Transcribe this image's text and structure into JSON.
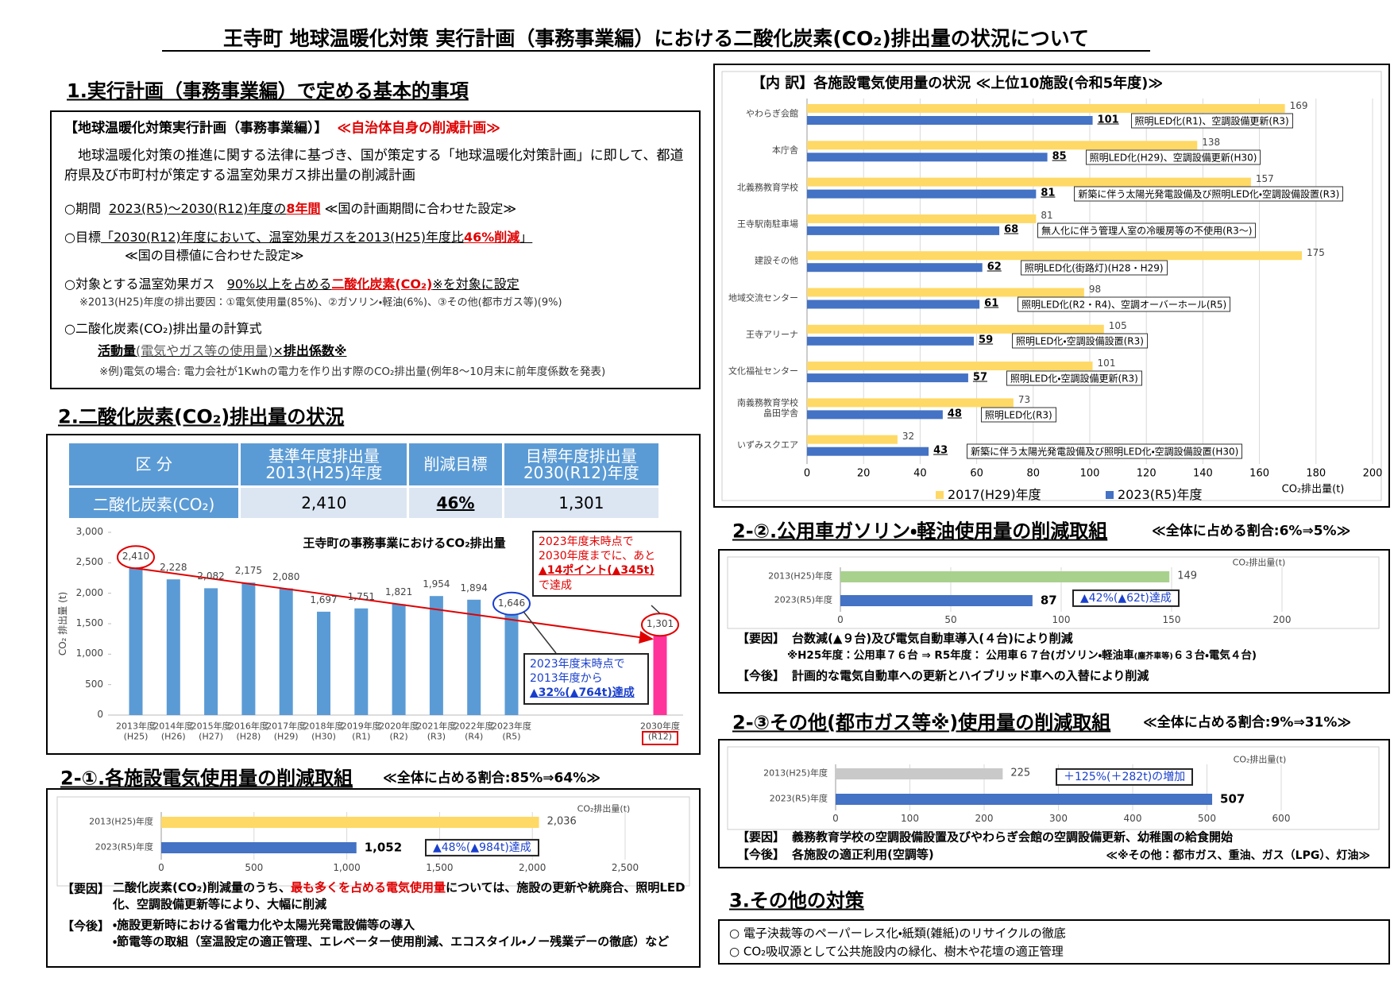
{
  "title": "王寺町 地球温暖化対策 実行計画（事務事業編）における二酸化炭素(CO₂)排出量の状況について",
  "section1": {
    "heading": "1.実行計画（事務事業編）で定める基本的事項",
    "box_title": "【地球温暖化対策実行計画（事務事業編）】",
    "box_tag": "≪自治体自身の削減計画≫",
    "intro": "地球温暖化対策の推進に関する法律に基づき、国が策定する「地球温暖化対策計画」に即して、都道府県及び市町村が策定する温室効果ガス排出量の削減計画",
    "period": [
      "○期間",
      "2023(R5)～2030(R12)年度の",
      "8年間",
      "≪国の計画期間に合わせた設定≫"
    ],
    "goal": [
      "○目標",
      "「2030(R12)年度において、温室効果ガスを2013(H25)年度比",
      "46%削減",
      "」"
    ],
    "goal_note": "≪国の目標値に合わせた設定≫",
    "target": [
      "○対象とする温室効果ガス",
      "90%以上を占める",
      "二酸化炭素(CO₂)",
      "※を対象に設定"
    ],
    "target_note": "※2013(H25)年度の排出要因：①電気使用量(85%)、②ガソリン・軽油(6%)、③その他(都市ガス等)(9%)",
    "formula_title": "○二酸化炭素(CO₂)排出量の計算式",
    "formula": [
      "活動量",
      "(電気やガス等の使用量)",
      "×",
      "排出係数※"
    ],
    "formula_note": "※例)電気の場合: 電力会社が1Kwhの電力を作り出す際のCO₂排出量(例年8～10月末に前年度係数を発表)"
  },
  "section2": {
    "heading": "2.二酸化炭素(CO₂)排出量の状況",
    "table": {
      "header": [
        "区 分",
        "基準年度排出量\n2013(H25)年度",
        "削減目標",
        "目標年度排出量\n2030(R12)年度"
      ],
      "row": [
        "二酸化炭素(CO₂)",
        "2,410",
        "46%",
        "1,301"
      ]
    }
  },
  "section2_1": {
    "heading": "2-①.各施設電気使用量の削減取組",
    "share": "≪全体に占める割合:85%⇒64%≫",
    "cause_label": "【要因】",
    "cause": [
      "二酸化炭素(CO₂)削減量のうち、",
      "最も多くを占める電気使用量",
      "については、施設の更新や統廃合、照明LED化、空調設備更新等により、大幅に削減"
    ],
    "future_label": "【今後】",
    "future": [
      "・施設更新時における省電力化や太陽光発電設備等の導入",
      "・節電等の取組（室温設定の適正管理、エレベーター使用削減、エコスタイル・ノー残業デーの徹底）など"
    ]
  },
  "section2_2": {
    "heading": "2-②.公用車ガソリン・軽油使用量の削減取組",
    "share": "≪全体に占める割合:6%⇒5%≫",
    "cause_label": "【要因】",
    "cause": "台数減(▲９台)及び電気自動車導入(４台)により削減",
    "cause_note": [
      "※H25年度：公用車７６台 ⇒ R5年度： 公用車６７台(ガソリン・軽油車",
      "(塵芥車等)",
      "６３台・電気４台)"
    ],
    "future_label": "【今後】",
    "future": "計画的な電気自動車への更新とハイブリッド車への入替により削減"
  },
  "section2_3": {
    "heading": "2-③その他(都市ガス等※)使用量の削減取組",
    "share": "≪全体に占める割合:9%⇒31%≫",
    "cause_label": "【要因】",
    "cause": "義務教育学校の空調設備設置及びやわらぎ会館の空調設備更新、幼稚園の給食開始",
    "future_label": "【今後】",
    "future": "各施設の適正利用(空調等)",
    "note": "≪※その他：都市ガス、重油、ガス（LPG）、灯油≫"
  },
  "section3": {
    "heading": "3.その他の対策",
    "items": [
      "○ 電子決裁等のペーパーレス化・紙類(雑紙)のリサイクルの徹底",
      "○ CO₂吸収源として公共施設内の緑化、樹木や花壇の適正管理"
    ]
  },
  "chart_data": [
    {
      "type": "bar",
      "title": "王寺町の事務事業におけるCO₂排出量",
      "y_label": "CO₂ 排出量 (t)",
      "categories": [
        "2013年度\n(H25)",
        "2014年度\n(H26)",
        "2015年度\n(H27)",
        "2016年度\n(H28)",
        "2017年度\n(H29)",
        "2018年度\n(H30)",
        "2019年度\n(R1)",
        "2020年度\n(R2)",
        "2021年度\n(R3)",
        "2022年度\n(R4)",
        "2023年度\n(R5)",
        "2030年度\n(R12)"
      ],
      "values": [
        2410,
        2228,
        2082,
        2175,
        2080,
        1697,
        1751,
        1821,
        1954,
        1894,
        1646,
        1301
      ],
      "value_labels": [
        "2,410",
        "2,228",
        "2,082",
        "2,175",
        "2,080",
        "1,697",
        "1,751",
        "1,821",
        "1,954",
        "1,894",
        "1,646",
        "1,301"
      ],
      "colors": [
        "#5b9bd5",
        "#5b9bd5",
        "#5b9bd5",
        "#5b9bd5",
        "#5b9bd5",
        "#5b9bd5",
        "#5b9bd5",
        "#5b9bd5",
        "#5b9bd5",
        "#5b9bd5",
        "#5b9bd5",
        "#ff3399"
      ],
      "ylim": [
        0,
        3000
      ],
      "yticks": [
        0,
        500,
        {
          "value": 1000,
          "label": "1,000"
        },
        {
          "value": 1500,
          "label": "1,500"
        },
        {
          "value": 2000,
          "label": "2,000"
        },
        {
          "value": 2500,
          "label": "2,500"
        },
        {
          "value": 3000,
          "label": "3,000"
        }
      ],
      "grid": false,
      "annotation_target": [
        "2023年度末時点で",
        "2030年度までに、あと",
        "▲14ポイント(▲345t)",
        "で達成"
      ],
      "annotation_achieved": [
        "2023年度末時点で",
        "2013年度から",
        "▲32%(▲764t)達成"
      ]
    },
    {
      "type": "barh",
      "title": "【内 訳】各施設電気使用量の状況 ≪上位10施設(令和5年度)≫",
      "categories": [
        "やわらぎ会館",
        "本庁舎",
        "北義務教育学校",
        "王寺駅南駐車場",
        "建設その他",
        "地域交流センター",
        "王寺アリーナ",
        "文化福祉センター",
        "南義務教育学校\n畠田学舎",
        "いずみスクエア"
      ],
      "series": [
        {
          "name": "2017(H29)年度",
          "color": "#ffd966",
          "values": [
            169,
            138,
            157,
            81,
            175,
            98,
            105,
            101,
            73,
            32
          ]
        },
        {
          "name": "2023(R5)年度",
          "color": "#4472c4",
          "values": [
            101,
            85,
            81,
            68,
            62,
            61,
            59,
            57,
            48,
            43
          ]
        }
      ],
      "notes": [
        "照明LED化(R1)、空調設備更新(R3)",
        "照明LED化(H29)、空調設備更新(H30)",
        "新築に伴う太陽光発電設備及び照明LED化・空調設備設置(R3)",
        "無人化に伴う管理人室の冷暖房等の不使用(R3～)",
        "照明LED化(街路灯)(H28・H29)",
        "照明LED化(R2・R4)、空調オーバーホール(R5)",
        "照明LED化・空調設備設置(R3)",
        "照明LED化・空調設備更新(R3)",
        "照明LED化(R3)",
        "新築に伴う太陽光発電設備及び照明LED化・空調設備設置(H30)"
      ],
      "xlim": [
        0,
        200
      ],
      "xticks": [
        0,
        20,
        40,
        60,
        80,
        100,
        120,
        140,
        160,
        180,
        200
      ],
      "x_label": "CO₂排出量(t)",
      "grid": true,
      "legend": "bottom"
    },
    {
      "type": "barh",
      "categories": [
        "2013(H25)年度",
        "2023(R5)年度"
      ],
      "values": [
        2036,
        1052
      ],
      "value_labels": [
        "2,036",
        "1,052"
      ],
      "colors": [
        "#ffd966",
        "#4472c4"
      ],
      "xlim": [
        0,
        2500
      ],
      "xticks": [
        0,
        500,
        {
          "value": 1000,
          "label": "1,000"
        },
        {
          "value": 1500,
          "label": "1,500"
        },
        {
          "value": 2000,
          "label": "2,000"
        },
        {
          "value": 2500,
          "label": "2,500"
        }
      ],
      "x_label": "CO₂排出量(t)",
      "annotation": "▲48%(▲984t)達成",
      "grid": true
    },
    {
      "type": "barh",
      "categories": [
        "2013(H25)年度",
        "2023(R5)年度"
      ],
      "values": [
        149,
        87
      ],
      "colors": [
        "#a9d18e",
        "#4472c4"
      ],
      "xlim": [
        0,
        200
      ],
      "xticks": [
        0,
        50,
        100,
        150,
        200
      ],
      "x_label": "CO₂排出量(t)",
      "annotation": "▲42%(▲62t)達成",
      "grid": true
    },
    {
      "type": "barh",
      "categories": [
        "2013(H25)年度",
        "2023(R5)年度"
      ],
      "values": [
        225,
        507
      ],
      "colors": [
        "#c9c9c9",
        "#4472c4"
      ],
      "xlim": [
        0,
        600
      ],
      "xticks": [
        0,
        100,
        200,
        300,
        400,
        500,
        600
      ],
      "x_label": "CO₂排出量(t)",
      "annotation": "＋125%(＋282t)の増加",
      "grid": true
    }
  ]
}
